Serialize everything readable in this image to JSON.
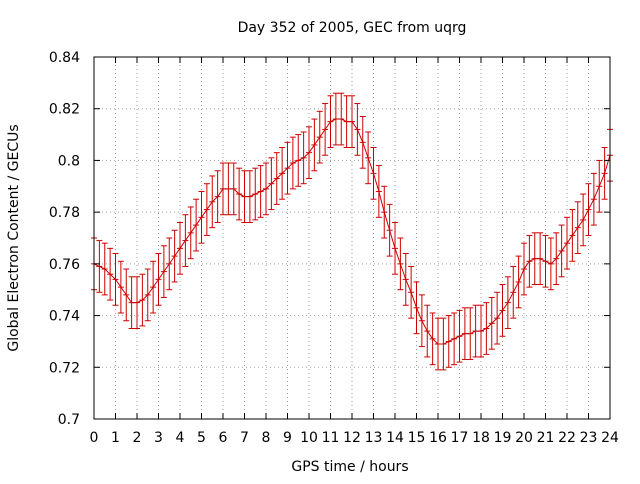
{
  "chart_data": {
    "type": "line",
    "title": "Day 352 of 2005, GEC from uqrg",
    "xlabel": "GPS time / hours",
    "ylabel": "Global Electron Content / GECUs",
    "xlim": [
      0,
      24
    ],
    "ylim": [
      0.7,
      0.84
    ],
    "xticks": [
      "0",
      "1",
      "2",
      "3",
      "4",
      "5",
      "6",
      "7",
      "8",
      "9",
      "10",
      "11",
      "12",
      "13",
      "14",
      "15",
      "16",
      "17",
      "18",
      "19",
      "20",
      "21",
      "22",
      "23",
      "24"
    ],
    "yticks": [
      "0.7",
      "0.72",
      "0.74",
      "0.76",
      "0.78",
      "0.8",
      "0.82",
      "0.84"
    ],
    "grid": true,
    "error_bars": true,
    "error_half_width": 0.01,
    "series": [
      {
        "color": "#cc0000",
        "x": [
          0,
          0.25,
          0.5,
          0.75,
          1,
          1.25,
          1.5,
          1.75,
          2,
          2.25,
          2.5,
          2.75,
          3,
          3.25,
          3.5,
          3.75,
          4,
          4.25,
          4.5,
          4.75,
          5,
          5.25,
          5.5,
          5.75,
          6,
          6.25,
          6.5,
          6.75,
          7,
          7.25,
          7.5,
          7.75,
          8,
          8.25,
          8.5,
          8.75,
          9,
          9.25,
          9.5,
          9.75,
          10,
          10.25,
          10.5,
          10.75,
          11,
          11.25,
          11.5,
          11.75,
          12,
          12.25,
          12.5,
          12.75,
          13,
          13.25,
          13.5,
          13.75,
          14,
          14.25,
          14.5,
          14.75,
          15,
          15.25,
          15.5,
          15.75,
          16,
          16.25,
          16.5,
          16.75,
          17,
          17.25,
          17.5,
          17.75,
          18,
          18.25,
          18.5,
          18.75,
          19,
          19.25,
          19.5,
          19.75,
          20,
          20.25,
          20.5,
          20.75,
          21,
          21.25,
          21.5,
          21.75,
          22,
          22.25,
          22.5,
          22.75,
          23,
          23.25,
          23.5,
          23.75,
          24
        ],
        "y": [
          0.76,
          0.759,
          0.758,
          0.756,
          0.754,
          0.751,
          0.748,
          0.745,
          0.745,
          0.746,
          0.748,
          0.751,
          0.754,
          0.757,
          0.76,
          0.763,
          0.766,
          0.769,
          0.772,
          0.775,
          0.778,
          0.781,
          0.784,
          0.786,
          0.789,
          0.789,
          0.789,
          0.787,
          0.786,
          0.786,
          0.787,
          0.788,
          0.789,
          0.791,
          0.793,
          0.795,
          0.797,
          0.799,
          0.8,
          0.801,
          0.803,
          0.806,
          0.809,
          0.812,
          0.815,
          0.816,
          0.816,
          0.815,
          0.815,
          0.812,
          0.807,
          0.801,
          0.795,
          0.788,
          0.78,
          0.773,
          0.766,
          0.76,
          0.754,
          0.749,
          0.743,
          0.738,
          0.734,
          0.731,
          0.729,
          0.729,
          0.73,
          0.731,
          0.732,
          0.733,
          0.733,
          0.734,
          0.734,
          0.735,
          0.737,
          0.739,
          0.742,
          0.745,
          0.749,
          0.753,
          0.758,
          0.761,
          0.762,
          0.762,
          0.761,
          0.76,
          0.762,
          0.765,
          0.768,
          0.771,
          0.774,
          0.777,
          0.781,
          0.785,
          0.79,
          0.795,
          0.802
        ]
      }
    ]
  }
}
